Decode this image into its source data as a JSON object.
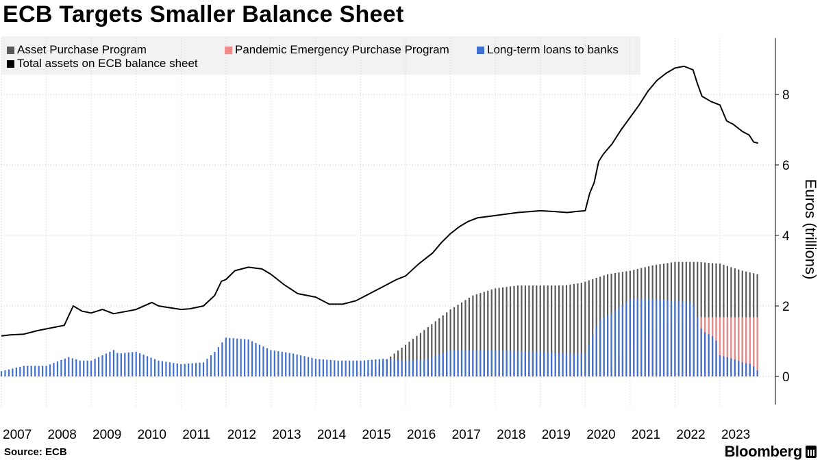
{
  "title": "ECB Targets Smaller Balance Sheet",
  "source": "Source: ECB",
  "brand": "Bloomberg",
  "legend": {
    "items": [
      {
        "label": "Asset Purchase Program",
        "color": "#595959"
      },
      {
        "label": "Pandemic Emergency Purchase Program",
        "color": "#f08a8a"
      },
      {
        "label": "Long-term loans to banks",
        "color": "#3f6fd1"
      },
      {
        "label": "Total assets on ECB balance sheet",
        "color": "#000000"
      }
    ]
  },
  "chart_data": {
    "type": "bar",
    "ylabel": "Euros (trillions)",
    "ylim": [
      -0.8,
      9.6
    ],
    "yticks": [
      0,
      2,
      4,
      6,
      8
    ],
    "xlim": [
      2007.0,
      2023.9
    ],
    "xticks": [
      "2007",
      "2008",
      "2009",
      "2010",
      "2011",
      "2012",
      "2013",
      "2014",
      "2015",
      "2016",
      "2017",
      "2018",
      "2019",
      "2020",
      "2021",
      "2022",
      "2023"
    ],
    "grid": true,
    "legend_position": "top-left",
    "series": [
      {
        "name": "Long-term loans to banks",
        "color": "#3f6fd1",
        "x": [
          2007.0,
          2007.5,
          2008.0,
          2008.5,
          2008.75,
          2009.0,
          2009.5,
          2009.6,
          2010.0,
          2010.5,
          2011.0,
          2011.5,
          2011.75,
          2012.0,
          2012.5,
          2013.0,
          2013.5,
          2014.0,
          2014.5,
          2015.0,
          2015.5,
          2016.0,
          2016.5,
          2017.0,
          2017.5,
          2018.0,
          2018.5,
          2019.0,
          2019.5,
          2020.0,
          2020.3,
          2020.6,
          2021.0,
          2021.5,
          2022.0,
          2022.4,
          2022.6,
          2022.9,
          2023.0,
          2023.3,
          2023.5,
          2023.7,
          2023.85
        ],
        "y": [
          0.15,
          0.3,
          0.3,
          0.55,
          0.45,
          0.45,
          0.75,
          0.65,
          0.7,
          0.45,
          0.35,
          0.4,
          0.7,
          1.1,
          1.05,
          0.75,
          0.65,
          0.5,
          0.45,
          0.45,
          0.5,
          0.45,
          0.5,
          0.75,
          0.75,
          0.75,
          0.72,
          0.7,
          0.65,
          0.65,
          1.6,
          1.8,
          2.2,
          2.2,
          2.15,
          2.1,
          1.3,
          1.1,
          0.6,
          0.5,
          0.4,
          0.35,
          0.15
        ]
      },
      {
        "name": "Asset Purchase Program",
        "color": "#595959",
        "x": [
          2007.0,
          2015.0,
          2015.5,
          2016.0,
          2016.5,
          2017.0,
          2017.5,
          2018.0,
          2018.5,
          2019.0,
          2019.5,
          2019.9,
          2020.5,
          2021.0,
          2021.5,
          2022.0,
          2022.5,
          2023.0,
          2023.5,
          2023.85
        ],
        "y": [
          0,
          0,
          0.4,
          0.9,
          1.4,
          1.9,
          2.3,
          2.5,
          2.58,
          2.58,
          2.58,
          2.65,
          2.9,
          3.0,
          3.15,
          3.25,
          3.25,
          3.2,
          3.0,
          2.9
        ]
      },
      {
        "name": "Pandemic Emergency Purchase Program",
        "color": "#f08a8a",
        "x": [
          2007.0,
          2020.2,
          2020.5,
          2021.0,
          2021.5,
          2022.0,
          2022.45,
          2022.5,
          2023.0,
          2023.85
        ],
        "y": [
          0,
          0,
          0.3,
          0.9,
          1.3,
          1.6,
          1.68,
          1.68,
          1.68,
          1.68
        ]
      },
      {
        "name": "Total assets on ECB balance sheet",
        "color": "#000000",
        "x": [
          2007.0,
          2007.2,
          2007.5,
          2007.8,
          2008.0,
          2008.4,
          2008.6,
          2008.8,
          2009.0,
          2009.25,
          2009.5,
          2009.8,
          2010.0,
          2010.35,
          2010.5,
          2010.75,
          2011.0,
          2011.2,
          2011.5,
          2011.75,
          2011.9,
          2012.0,
          2012.2,
          2012.5,
          2012.8,
          2013.0,
          2013.3,
          2013.6,
          2014.0,
          2014.3,
          2014.6,
          2014.9,
          2015.2,
          2015.5,
          2015.8,
          2016.0,
          2016.3,
          2016.6,
          2016.8,
          2017.0,
          2017.2,
          2017.4,
          2017.6,
          2017.9,
          2018.2,
          2018.5,
          2018.8,
          2019.0,
          2019.3,
          2019.6,
          2019.8,
          2020.0,
          2020.1,
          2020.2,
          2020.3,
          2020.4,
          2020.6,
          2020.8,
          2021.0,
          2021.2,
          2021.4,
          2021.6,
          2021.8,
          2022.0,
          2022.2,
          2022.4,
          2022.5,
          2022.6,
          2022.8,
          2023.0,
          2023.15,
          2023.3,
          2023.5,
          2023.65,
          2023.75,
          2023.85
        ],
        "y": [
          1.15,
          1.18,
          1.2,
          1.3,
          1.35,
          1.45,
          2.0,
          1.85,
          1.8,
          1.9,
          1.78,
          1.85,
          1.9,
          2.1,
          2.0,
          1.95,
          1.9,
          1.92,
          2.0,
          2.3,
          2.7,
          2.75,
          3.0,
          3.1,
          3.05,
          2.9,
          2.6,
          2.35,
          2.25,
          2.05,
          2.05,
          2.15,
          2.35,
          2.55,
          2.75,
          2.85,
          3.2,
          3.5,
          3.8,
          4.05,
          4.25,
          4.4,
          4.5,
          4.55,
          4.6,
          4.65,
          4.68,
          4.7,
          4.68,
          4.65,
          4.68,
          4.7,
          5.2,
          5.5,
          6.1,
          6.3,
          6.6,
          7.0,
          7.35,
          7.7,
          8.1,
          8.4,
          8.6,
          8.75,
          8.8,
          8.7,
          8.3,
          7.95,
          7.8,
          7.7,
          7.25,
          7.15,
          6.95,
          6.85,
          6.65,
          6.62
        ]
      }
    ]
  }
}
